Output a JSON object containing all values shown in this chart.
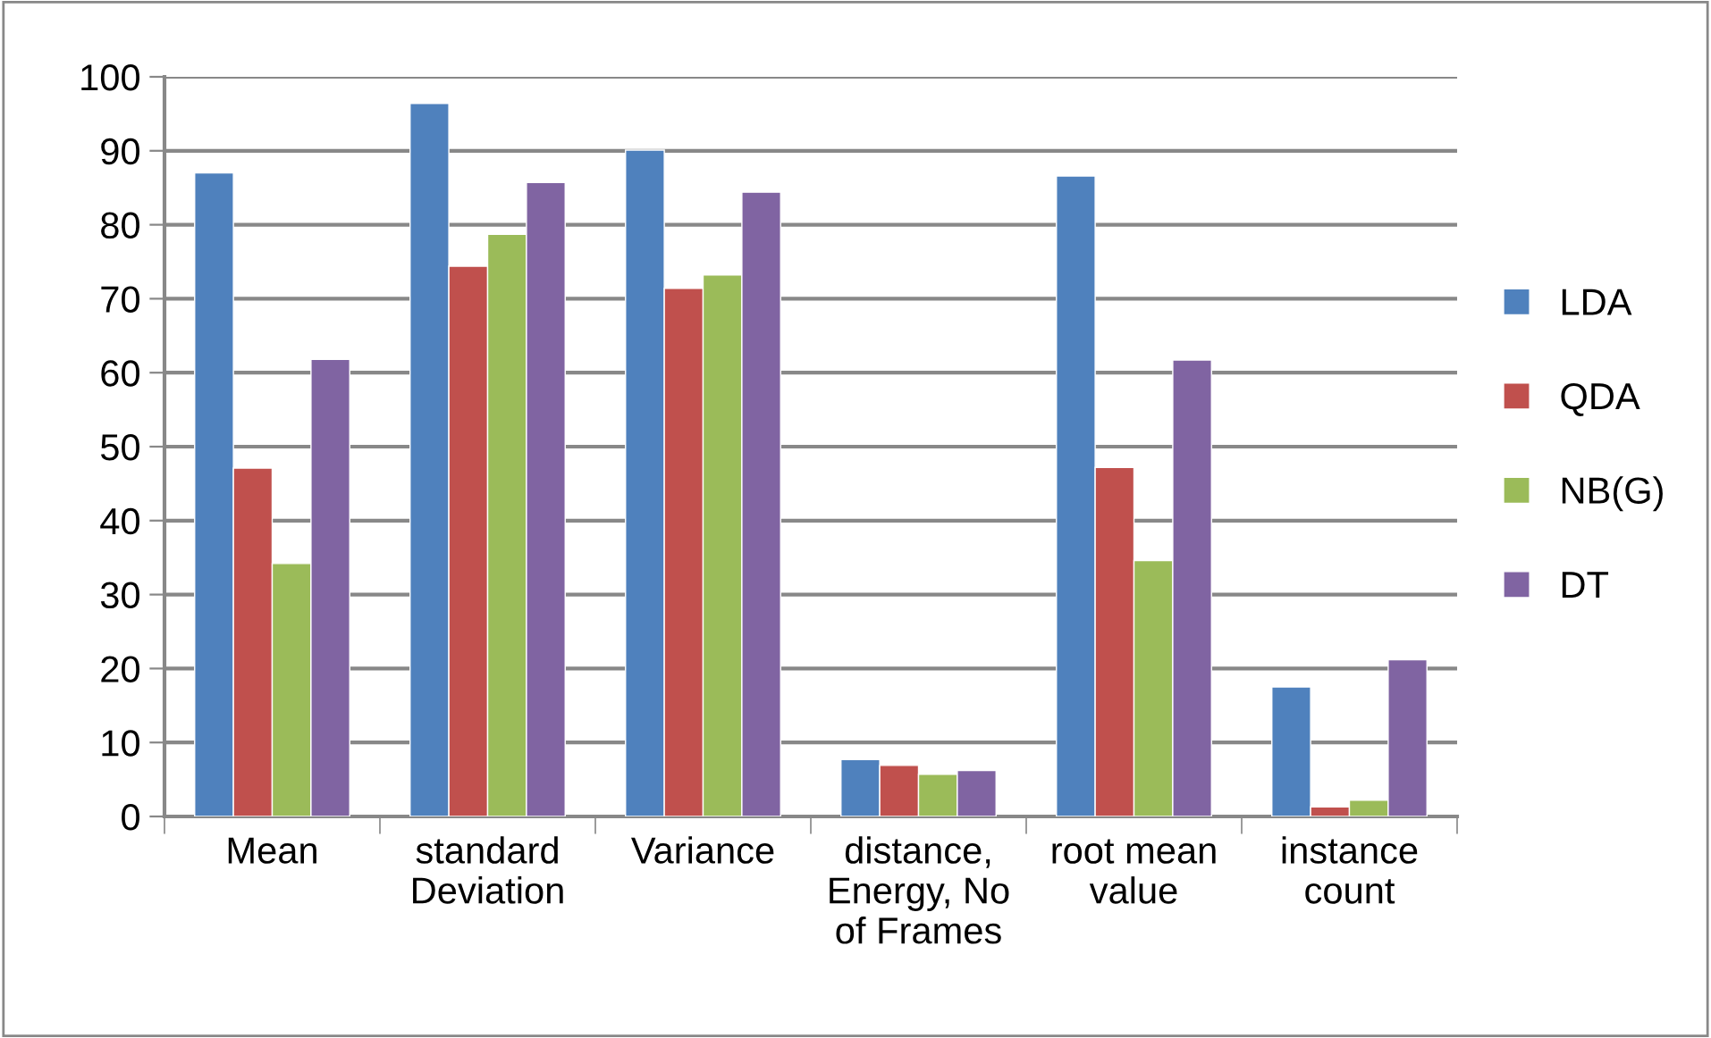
{
  "chart_data": {
    "type": "bar",
    "categories": [
      "Mean",
      "standard\nDeviation",
      "Variance",
      "distance,\nEnergy, No\nof Frames",
      "root mean\nvalue",
      "instance\ncount"
    ],
    "series": [
      {
        "name": "LDA",
        "color": "#4f81bd",
        "values": [
          87.0,
          96.4,
          90.1,
          7.7,
          86.6,
          17.5
        ]
      },
      {
        "name": "QDA",
        "color": "#c0504d",
        "values": [
          47.1,
          74.4,
          71.4,
          6.9,
          47.2,
          1.3
        ]
      },
      {
        "name": "NB(G)",
        "color": "#9bbb59",
        "values": [
          34.2,
          78.7,
          73.2,
          5.7,
          34.6,
          2.2
        ]
      },
      {
        "name": "DT",
        "color": "#8064a2",
        "values": [
          61.8,
          85.7,
          84.4,
          6.2,
          61.7,
          21.2
        ]
      }
    ],
    "ylim": [
      0,
      100
    ],
    "yticks": [
      0,
      10,
      20,
      30,
      40,
      50,
      60,
      70,
      80,
      90,
      100
    ],
    "grid": "y",
    "legend": "right"
  }
}
